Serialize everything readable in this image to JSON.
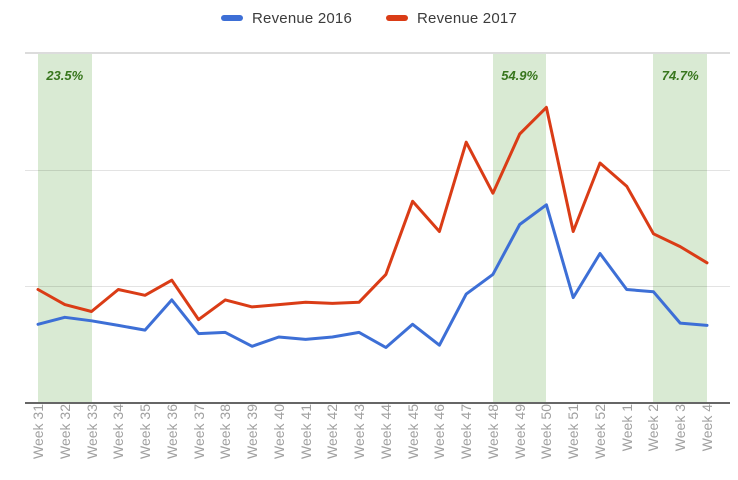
{
  "legend": {
    "items": [
      {
        "label": "Revenue 2016",
        "color": "#3d6fd6"
      },
      {
        "label": "Revenue 2017",
        "color": "#da3c16"
      }
    ]
  },
  "chart_data": {
    "type": "line",
    "title": "",
    "xlabel": "",
    "ylabel": "",
    "x": [
      "Week 31",
      "Week 32",
      "Week 33",
      "Week 34",
      "Week 35",
      "Week 36",
      "Week 37",
      "Week 38",
      "Week 39",
      "Week 40",
      "Week 41",
      "Week 42",
      "Week 43",
      "Week 44",
      "Week 45",
      "Week 46",
      "Week 47",
      "Week 48",
      "Week 49",
      "Week 50",
      "Week 51",
      "Week 52",
      "Week 1",
      "Week 2",
      "Week 3",
      "Week 4"
    ],
    "series": [
      {
        "name": "Revenue 2016",
        "color": "#3d6fd6",
        "values": [
          67,
          73,
          70,
          66,
          62,
          88,
          59,
          60,
          48,
          56,
          54,
          56,
          60,
          47,
          67,
          49,
          93,
          110,
          153,
          170,
          90,
          128,
          97,
          95,
          68,
          66
        ]
      },
      {
        "name": "Revenue 2017",
        "color": "#da3c16",
        "values": [
          97,
          84,
          78,
          97,
          92,
          105,
          71,
          88,
          82,
          84,
          86,
          85,
          86,
          110,
          173,
          147,
          224,
          180,
          231,
          254,
          147,
          206,
          186,
          145,
          134,
          120
        ]
      }
    ],
    "ylim": [
      0,
      300
    ],
    "gridlines": [
      100,
      200
    ],
    "y_axis_labels_visible": false,
    "legend_position": "top",
    "highlights": [
      {
        "label": "23.5%",
        "from": "Week 31",
        "to": "Week 33",
        "band_color": "#d9ead3",
        "text_color": "#38761d"
      },
      {
        "label": "54.9%",
        "from": "Week 48",
        "to": "Week 50",
        "band_color": "#d9ead3",
        "text_color": "#38761d"
      },
      {
        "label": "74.7%",
        "from": "Week 2",
        "to": "Week 4",
        "band_color": "#d9ead3",
        "text_color": "#38761d"
      }
    ]
  }
}
